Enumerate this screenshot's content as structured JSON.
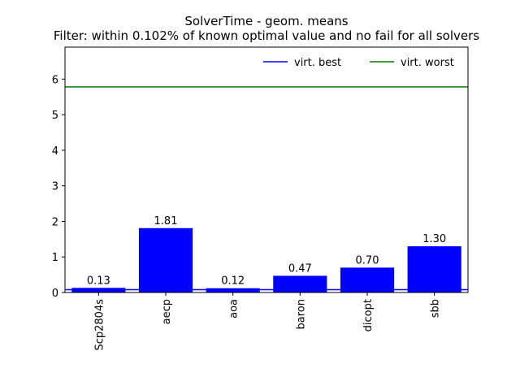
{
  "chart_data": {
    "type": "bar",
    "title": "SolverTime - geom. means",
    "subtitle": "Filter: within 0.102% of known optimal value and no fail for all solvers",
    "xlabel": "",
    "ylabel": "",
    "categories": [
      "Scp2804s",
      "aecp",
      "aoa",
      "baron",
      "dicopt",
      "sbb"
    ],
    "values": [
      0.13,
      1.81,
      0.12,
      0.47,
      0.7,
      1.3
    ],
    "value_labels": [
      "0.13",
      "1.81",
      "0.12",
      "0.47",
      "0.70",
      "1.30"
    ],
    "ylim": [
      0,
      6.9
    ],
    "yticks": [
      0,
      1,
      2,
      3,
      4,
      5,
      6
    ],
    "bar_color": "#0000ff",
    "reference_lines": [
      {
        "name": "virt. best",
        "value": 0.08,
        "color": "#0000ff"
      },
      {
        "name": "virt. worst",
        "value": 5.78,
        "color": "#008000"
      }
    ],
    "legend_position": "top-right",
    "grid": false
  }
}
